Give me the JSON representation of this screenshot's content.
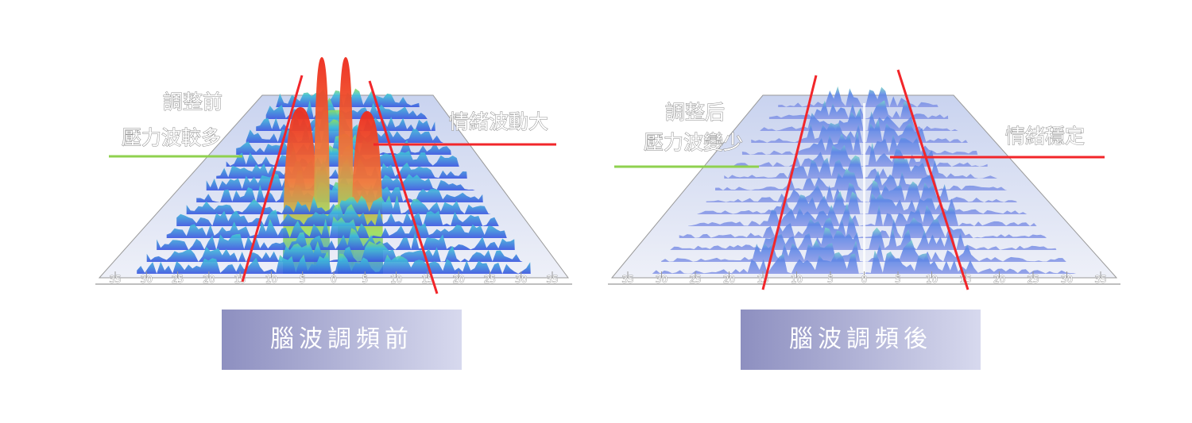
{
  "panels": [
    {
      "annotation_top": "調整前",
      "annotation_left": "壓力波較多",
      "annotation_right": "情緒波動大",
      "axis_labels": [
        35,
        30,
        25,
        20,
        15,
        10,
        5,
        0,
        5,
        10,
        15,
        20,
        25,
        30,
        35
      ],
      "caption": "腦波調頻前"
    },
    {
      "annotation_top": "調整后",
      "annotation_left": "壓力波變少",
      "annotation_right": "情緒穩定",
      "axis_labels": [
        35,
        30,
        25,
        20,
        15,
        10,
        5,
        0,
        5,
        10,
        15,
        20,
        25,
        30,
        35
      ],
      "caption": "腦波調頻後"
    }
  ]
}
